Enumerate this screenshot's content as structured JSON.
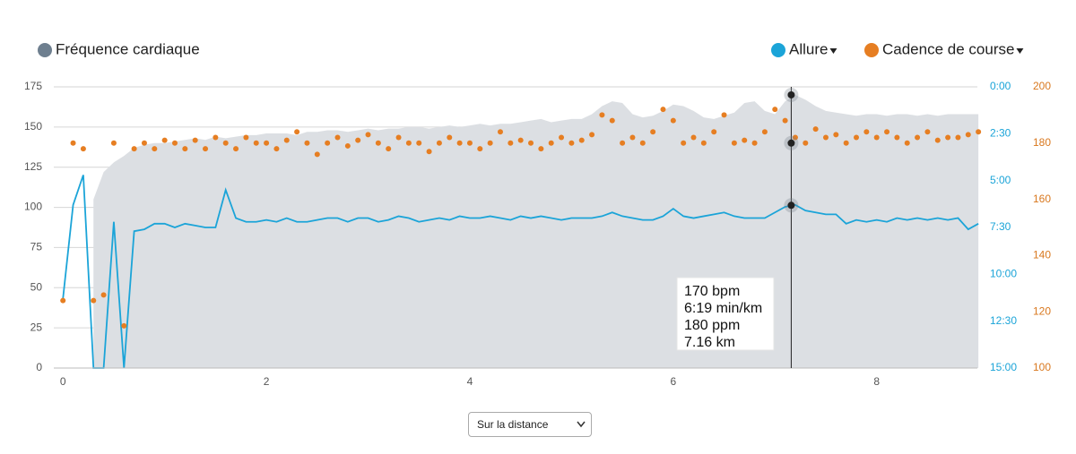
{
  "chart_data": {
    "type": "combo",
    "x": [
      0,
      0.1,
      0.2,
      0.3,
      0.4,
      0.5,
      0.6,
      0.7,
      0.8,
      0.9,
      1,
      1.1,
      1.2,
      1.3,
      1.4,
      1.5,
      1.6,
      1.7,
      1.8,
      1.9,
      2,
      2.1,
      2.2,
      2.3,
      2.4,
      2.5,
      2.6,
      2.7,
      2.8,
      2.9,
      3,
      3.1,
      3.2,
      3.3,
      3.4,
      3.5,
      3.6,
      3.7,
      3.8,
      3.9,
      4,
      4.1,
      4.2,
      4.3,
      4.4,
      4.5,
      4.6,
      4.7,
      4.8,
      4.9,
      5,
      5.1,
      5.2,
      5.3,
      5.4,
      5.5,
      5.6,
      5.7,
      5.8,
      5.9,
      6,
      6.1,
      6.2,
      6.3,
      6.4,
      6.5,
      6.6,
      6.7,
      6.8,
      6.9,
      7,
      7.1,
      7.2,
      7.3,
      7.4,
      7.5,
      7.6,
      7.7,
      7.8,
      7.9,
      8,
      8.1,
      8.2,
      8.3,
      8.4,
      8.5,
      8.6,
      8.7,
      8.8,
      8.9,
      9
    ],
    "series": [
      {
        "name": "Fréquence cardiaque",
        "color": "#6e7f8f",
        "fill": "#dcdfe3",
        "kind": "area",
        "axis": "y",
        "values": [
          null,
          null,
          null,
          105,
          122,
          128,
          132,
          137,
          139,
          140,
          140,
          141,
          142,
          143,
          142,
          144,
          143,
          144,
          145,
          145,
          146,
          146,
          146,
          145,
          147,
          147,
          148,
          148,
          147,
          148,
          149,
          148,
          149,
          149,
          150,
          150,
          149,
          150,
          151,
          150,
          151,
          152,
          151,
          152,
          152,
          153,
          154,
          155,
          153,
          154,
          155,
          155,
          158,
          163,
          166,
          165,
          158,
          156,
          157,
          160,
          164,
          163,
          160,
          156,
          155,
          157,
          159,
          165,
          166,
          160,
          158,
          166,
          170,
          167,
          163,
          160,
          159,
          158,
          157,
          158,
          158,
          157,
          158,
          158,
          157,
          158,
          157,
          158,
          158,
          158,
          158
        ]
      },
      {
        "name": "Allure",
        "color": "#1ba4d8",
        "kind": "line",
        "axis": "y2",
        "values": [
          11.3,
          6.3,
          4.7,
          15,
          15,
          7.2,
          15,
          7.7,
          7.6,
          7.3,
          7.3,
          7.5,
          7.3,
          7.4,
          7.5,
          7.5,
          5.5,
          7,
          7.2,
          7.2,
          7.1,
          7.2,
          7,
          7.2,
          7.2,
          7.1,
          7,
          7,
          7.2,
          7,
          7,
          7.2,
          7.1,
          6.9,
          7,
          7.2,
          7.1,
          7,
          7.1,
          6.9,
          7,
          7,
          6.9,
          7,
          7.1,
          6.9,
          7,
          6.9,
          7,
          7.1,
          7,
          7,
          7,
          6.9,
          6.7,
          6.9,
          7,
          7.1,
          7.1,
          6.9,
          6.5,
          6.9,
          7,
          6.9,
          6.8,
          6.7,
          6.9,
          7,
          7,
          7,
          6.7,
          6.4,
          6.3,
          6.6,
          6.7,
          6.8,
          6.8,
          7.3,
          7.1,
          7.2,
          7.1,
          7.2,
          7,
          7.1,
          7,
          7.1,
          7,
          7.1,
          7,
          7.6,
          7.3
        ]
      },
      {
        "name": "Cadence de course",
        "color": "#e67e22",
        "kind": "scatter",
        "axis": "y3",
        "values": [
          124,
          180,
          178,
          124,
          126,
          180,
          115,
          178,
          180,
          178,
          181,
          180,
          178,
          181,
          178,
          182,
          180,
          178,
          182,
          180,
          180,
          178,
          181,
          184,
          180,
          176,
          180,
          182,
          179,
          181,
          183,
          180,
          178,
          182,
          180,
          180,
          177,
          180,
          182,
          180,
          180,
          178,
          180,
          184,
          180,
          181,
          180,
          178,
          180,
          182,
          180,
          181,
          183,
          190,
          188,
          180,
          182,
          180,
          184,
          192,
          188,
          180,
          182,
          180,
          184,
          190,
          180,
          181,
          180,
          184,
          192,
          188,
          182,
          180,
          185,
          182,
          183,
          180,
          182,
          184,
          182,
          184,
          182,
          180,
          182,
          184,
          181,
          182,
          182,
          183,
          184
        ]
      }
    ],
    "xlim": [
      -0.09,
      8.99
    ],
    "xticks": [
      0,
      2,
      4,
      6,
      8
    ],
    "ylim": [
      0,
      175
    ],
    "yticks": [
      0,
      25,
      50,
      75,
      100,
      125,
      150,
      175
    ],
    "y2lim": [
      15,
      0
    ],
    "y2ticks": [
      {
        "value": 0,
        "label": "0:00"
      },
      {
        "value": 2.5,
        "label": "2:30"
      },
      {
        "value": 5,
        "label": "5:00"
      },
      {
        "value": 7.5,
        "label": "7:30"
      },
      {
        "value": 10,
        "label": "10:00"
      },
      {
        "value": 12.5,
        "label": "12:30"
      },
      {
        "value": 15,
        "label": "15:00"
      }
    ],
    "y3lim": [
      100,
      200
    ],
    "y3ticks": [
      100,
      120,
      140,
      160,
      180,
      200
    ],
    "grid": true,
    "tooltip": {
      "x": 7.16,
      "hr": 170,
      "pace": 6.32,
      "cadence": 180,
      "lines": [
        "170 bpm",
        "6:19 min/km",
        "180 ppm",
        "7.16 km"
      ]
    },
    "selector": "Sur la distance"
  }
}
